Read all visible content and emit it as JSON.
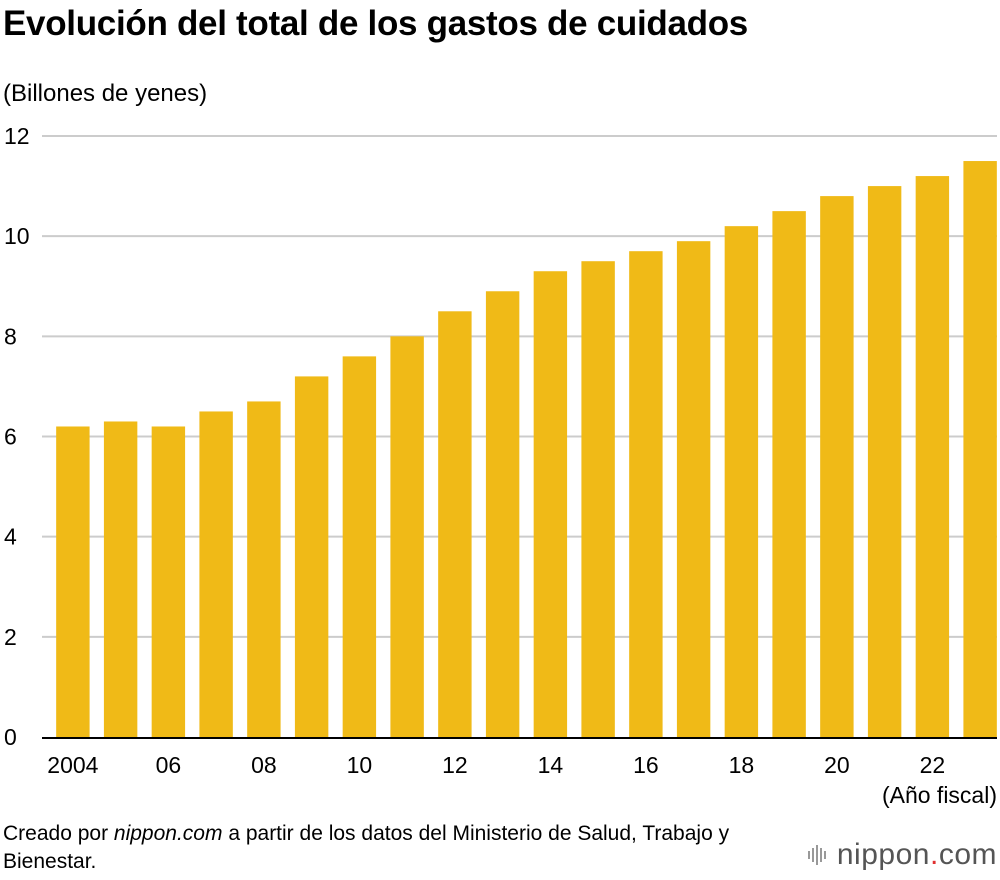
{
  "title": "Evolución del total de los gastos de cuidados",
  "unit_label": "(Billones de yenes)",
  "x_axis_label": "(Año fiscal)",
  "source": {
    "prefix": "Creado por ",
    "site": "nippon.com",
    "suffix": " a partir de los datos del Ministerio de Salud, Trabajo y Bienestar."
  },
  "logo": {
    "left": "nippon",
    "dot": ".",
    "right": "com"
  },
  "colors": {
    "bar": "#F0BA17",
    "grid": "#cccccc",
    "axis": "#000000"
  },
  "chart_data": {
    "type": "bar",
    "title": "Evolución del total de los gastos de cuidados",
    "ylabel": "(Billones de yenes)",
    "xlabel": "(Año fiscal)",
    "ylim": [
      0,
      12
    ],
    "yticks": [
      0,
      2,
      4,
      6,
      8,
      10,
      12
    ],
    "grid": true,
    "categories": [
      "2004",
      "2005",
      "2006",
      "2007",
      "2008",
      "2009",
      "2010",
      "2011",
      "2012",
      "2013",
      "2014",
      "2015",
      "2016",
      "2017",
      "2018",
      "2019",
      "2020",
      "2021",
      "2022",
      "2023"
    ],
    "tick_labels": [
      "2004",
      "",
      "06",
      "",
      "08",
      "",
      "10",
      "",
      "12",
      "",
      "14",
      "",
      "16",
      "",
      "18",
      "",
      "20",
      "",
      "22",
      ""
    ],
    "values": [
      6.2,
      6.3,
      6.2,
      6.5,
      6.7,
      7.2,
      7.6,
      8.0,
      8.5,
      8.9,
      9.3,
      9.5,
      9.7,
      9.9,
      10.2,
      10.5,
      10.8,
      11.0,
      11.2,
      11.5
    ]
  }
}
